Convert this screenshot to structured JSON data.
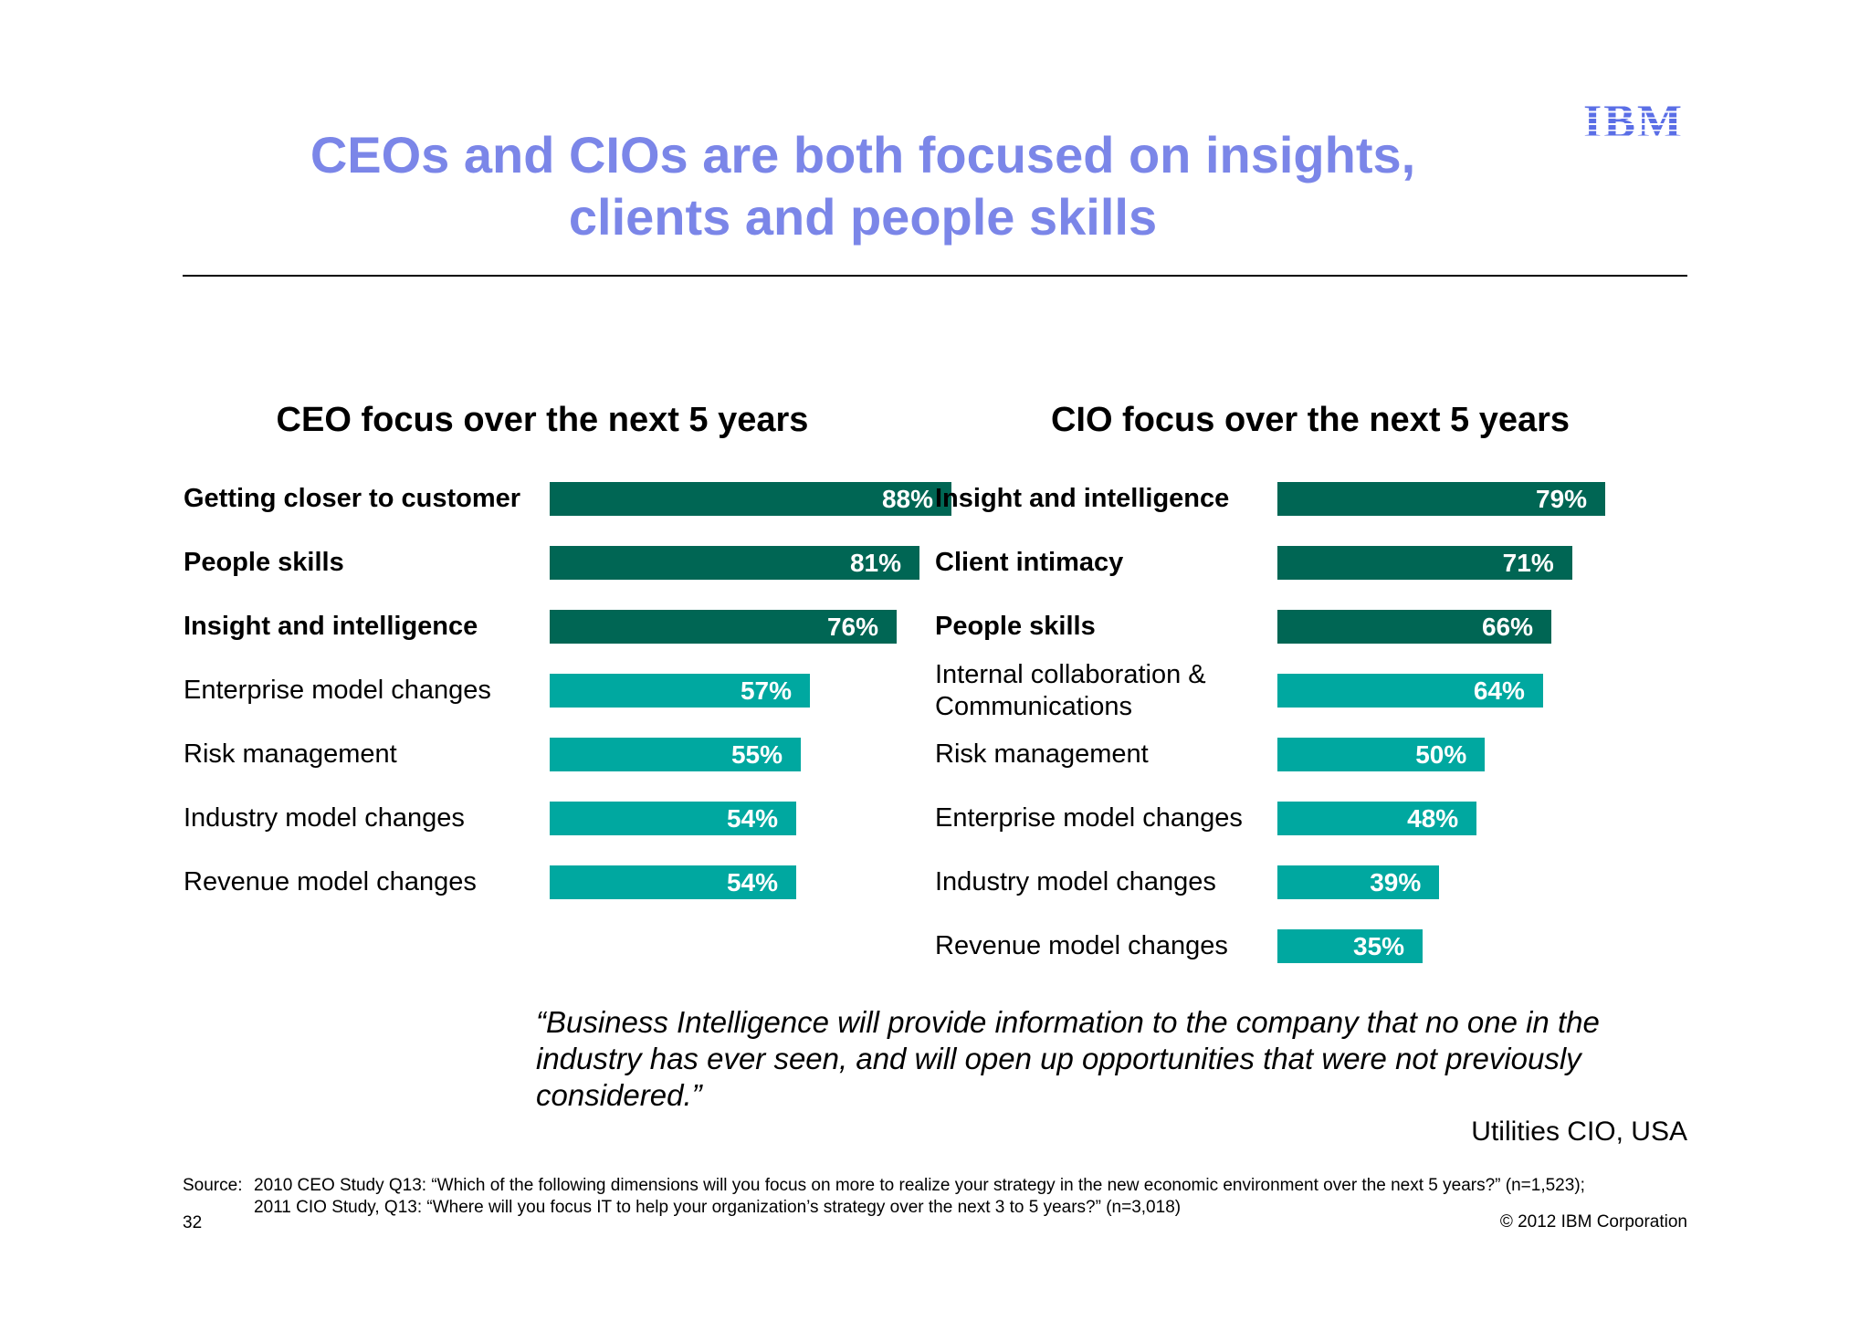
{
  "title": {
    "line1": "CEOs and CIOs are both focused on insights,",
    "line2": "clients and people skills"
  },
  "logo": "IBM",
  "colors": {
    "title": "#7b86e8",
    "logo": "#5a6ee6",
    "top_bar": "#006654",
    "other_bar": "#00a8a0"
  },
  "chart_data": [
    {
      "type": "bar",
      "orientation": "horizontal",
      "title": "CEO focus over the next 5 years",
      "categories": [
        "Getting closer to customer",
        "People skills",
        "Insight and intelligence",
        "Enterprise model changes",
        "Risk management",
        "Industry model changes",
        "Revenue model changes"
      ],
      "values": [
        88,
        81,
        76,
        57,
        55,
        54,
        54
      ],
      "value_labels": [
        "88%",
        "81%",
        "76%",
        "57%",
        "55%",
        "54%",
        "54%"
      ],
      "highlighted": [
        true,
        true,
        true,
        false,
        false,
        false,
        false
      ],
      "xlim": [
        0,
        100
      ],
      "unit": "%",
      "grid": false
    },
    {
      "type": "bar",
      "orientation": "horizontal",
      "title": "CIO focus over the next 5 years",
      "categories": [
        "Insight and intelligence",
        "Client intimacy",
        "People skills",
        "Internal collaboration & Communications",
        "Risk management",
        "Enterprise model changes",
        "Industry model changes",
        "Revenue model changes"
      ],
      "category_lines": [
        [
          "Insight and intelligence"
        ],
        [
          "Client intimacy"
        ],
        [
          "People skills"
        ],
        [
          "Internal collaboration &",
          "Communications"
        ],
        [
          "Risk management"
        ],
        [
          "Enterprise model changes"
        ],
        [
          "Industry model changes"
        ],
        [
          "Revenue model changes"
        ]
      ],
      "values": [
        79,
        71,
        66,
        64,
        50,
        48,
        39,
        35
      ],
      "value_labels": [
        "79%",
        "71%",
        "66%",
        "64%",
        "50%",
        "48%",
        "39%",
        "35%"
      ],
      "highlighted": [
        true,
        true,
        true,
        false,
        false,
        false,
        false,
        false
      ],
      "xlim": [
        0,
        100
      ],
      "unit": "%",
      "grid": false
    }
  ],
  "quote": "“Business Intelligence will provide information to the company that no one in the industry has ever seen, and will open up opportunities that were not previously considered.”",
  "attribution": "Utilities CIO, USA",
  "source": {
    "key": "Source:",
    "line1": "2010 CEO Study Q13: “Which of the following dimensions will you focus on more to realize your strategy in the new economic environment over the next 5 years?” (n=1,523);",
    "line2": "2011 CIO Study, Q13: “Where will you focus IT to help your organization’s strategy over the next 3 to 5 years?” (n=3,018)"
  },
  "page_number": "32",
  "copyright": "© 2012 IBM Corporation"
}
